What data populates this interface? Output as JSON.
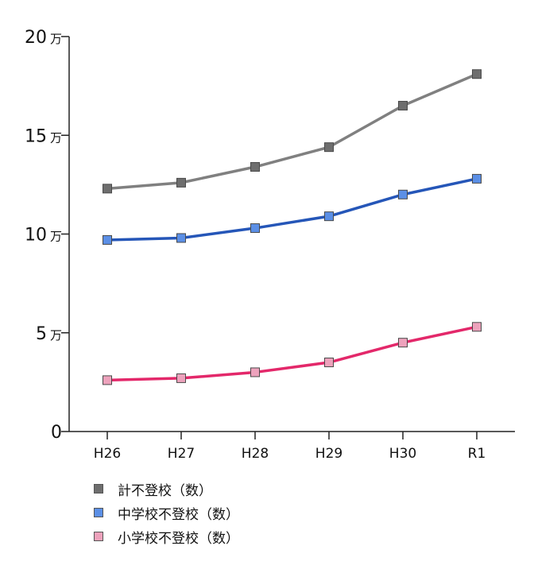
{
  "chart_data": {
    "type": "line",
    "title": "",
    "xlabel": "",
    "ylabel": "",
    "categories": [
      "H26",
      "H27",
      "H28",
      "H29",
      "H30",
      "R1"
    ],
    "yticks": [
      {
        "value": 0,
        "label": "0",
        "unit": ""
      },
      {
        "value": 5,
        "label": "5",
        "unit": "万"
      },
      {
        "value": 10,
        "label": "10",
        "unit": "万"
      },
      {
        "value": 15,
        "label": "15",
        "unit": "万"
      },
      {
        "value": 20,
        "label": "20",
        "unit": "万"
      }
    ],
    "ylim": [
      0,
      20
    ],
    "y_unit": "万",
    "grid": false,
    "legend_position": "bottom-left",
    "series": [
      {
        "name": "計不登校（数）",
        "color": "#808080",
        "marker_color": "#6e6e6e",
        "values": [
          12.3,
          12.6,
          13.4,
          14.4,
          16.5,
          18.1
        ]
      },
      {
        "name": "中学校不登校（数）",
        "color": "#2556b8",
        "marker_color": "#5b8fe6",
        "values": [
          9.7,
          9.8,
          10.3,
          10.9,
          12.0,
          12.8
        ]
      },
      {
        "name": "小学校不登校（数）",
        "color": "#e3286a",
        "marker_color": "#eda2bc",
        "values": [
          2.6,
          2.7,
          3.0,
          3.5,
          4.5,
          5.3
        ]
      }
    ]
  }
}
